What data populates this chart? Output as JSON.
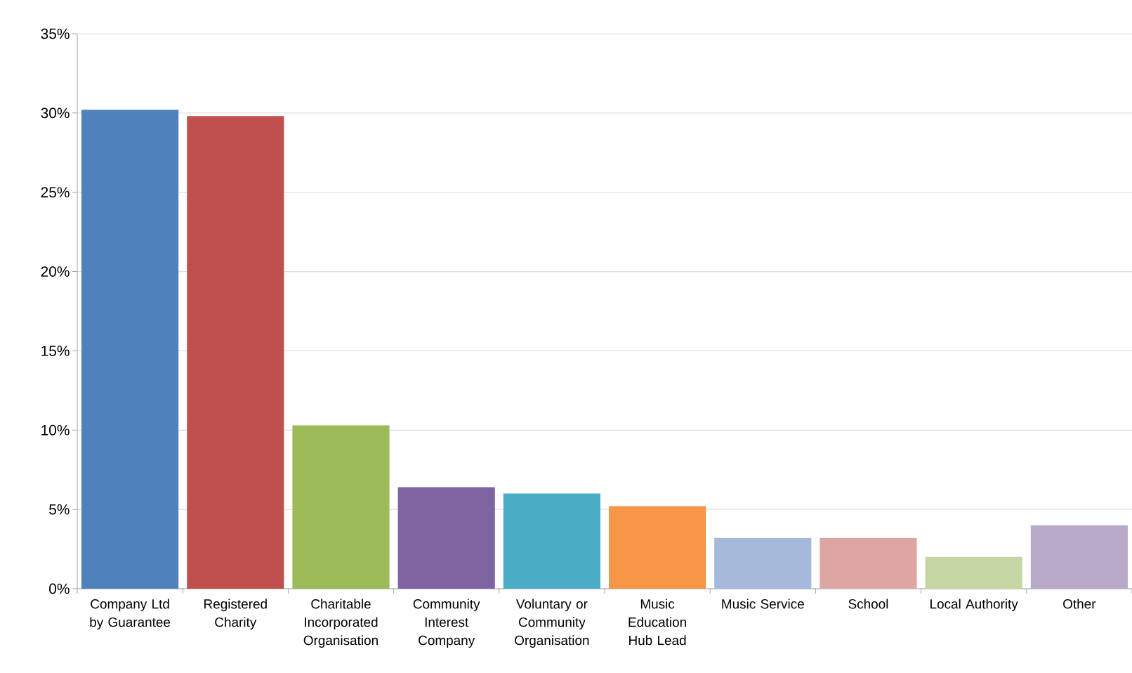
{
  "chart_data": {
    "type": "bar",
    "categories": [
      "Company Ltd by Guarantee",
      "Registered Charity",
      "Charitable Incorporated Organisation",
      "Community Interest Company",
      "Voluntary or Community Organisation",
      "Music Education Hub Lead",
      "Music Service",
      "School",
      "Local Authority",
      "Other"
    ],
    "values": [
      30.2,
      29.8,
      10.3,
      6.4,
      6.0,
      5.2,
      3.2,
      3.2,
      2.0,
      4.0
    ],
    "colors": [
      "#4f81bd",
      "#c0504d",
      "#9bbb59",
      "#8064a2",
      "#4bacc6",
      "#f79646",
      "#a5b9da",
      "#dda6a3",
      "#c5d6a4",
      "#b8a9c9"
    ],
    "ylim": [
      0,
      35
    ],
    "yticks": [
      {
        "value": 0,
        "label": "0%"
      },
      {
        "value": 5,
        "label": "5%"
      },
      {
        "value": 10,
        "label": "10%"
      },
      {
        "value": 15,
        "label": "15%"
      },
      {
        "value": 20,
        "label": "20%"
      },
      {
        "value": 25,
        "label": "25%"
      },
      {
        "value": 30,
        "label": "30%"
      },
      {
        "value": 35,
        "label": "35%"
      }
    ],
    "grid": "y"
  }
}
